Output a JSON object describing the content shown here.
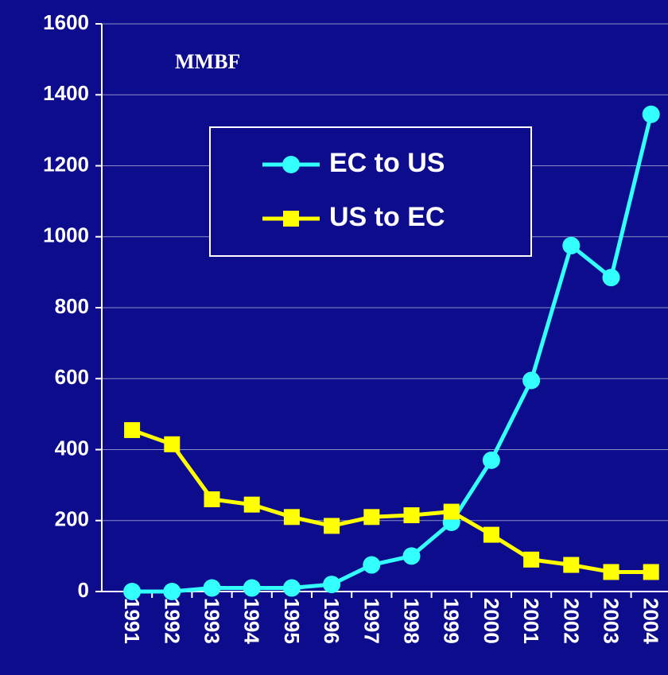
{
  "chart_data": {
    "type": "line",
    "annotation": "MMBF",
    "categories": [
      "1991",
      "1992",
      "1993",
      "1994",
      "1995",
      "1996",
      "1997",
      "1998",
      "1999",
      "2000",
      "2001",
      "2002",
      "2003",
      "2004"
    ],
    "series": [
      {
        "name": "EC to US",
        "color": "#33ffff",
        "marker": "circle",
        "values": [
          0,
          0,
          10,
          10,
          10,
          20,
          75,
          100,
          195,
          370,
          595,
          975,
          885,
          1345
        ]
      },
      {
        "name": "US to EC",
        "color": "#ffff00",
        "marker": "square",
        "values": [
          455,
          415,
          260,
          245,
          210,
          185,
          210,
          215,
          225,
          160,
          90,
          75,
          55,
          55
        ]
      }
    ],
    "ylim": [
      0,
      1600
    ],
    "yticks": [
      0,
      200,
      400,
      600,
      800,
      1000,
      1200,
      1400,
      1600
    ],
    "grid": true,
    "legend": "upper center"
  }
}
